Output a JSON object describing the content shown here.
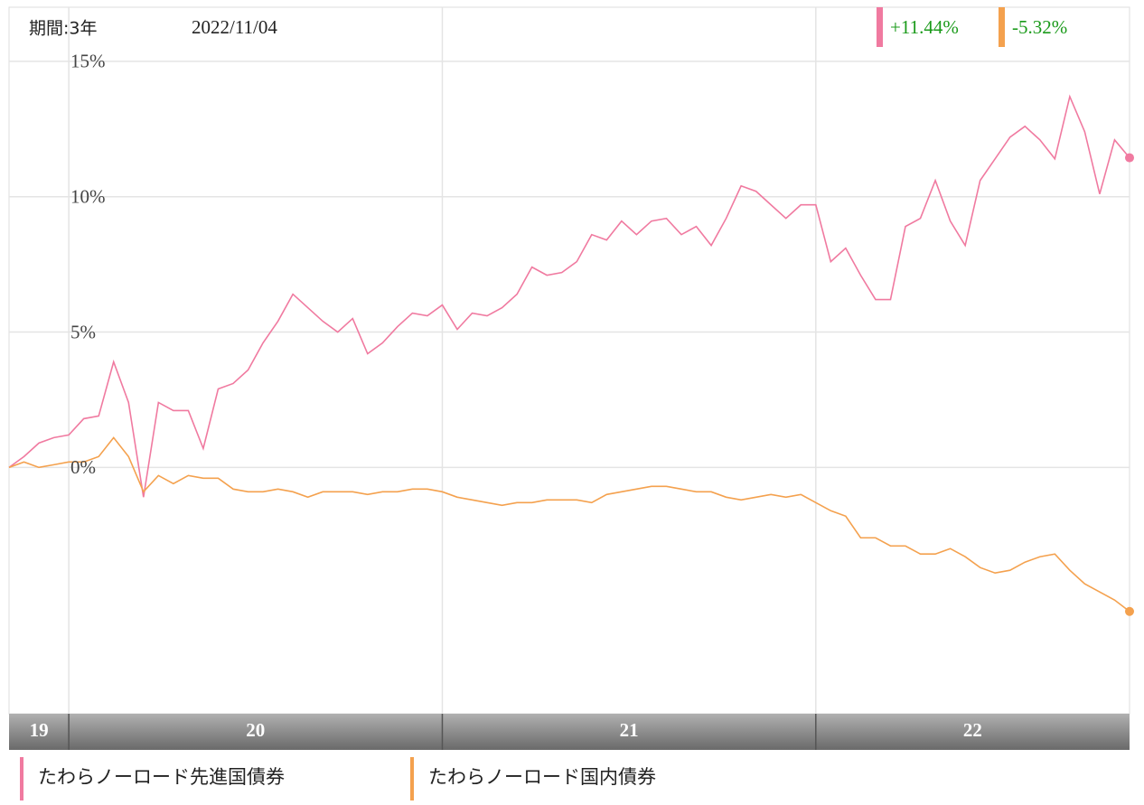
{
  "chart_data": {
    "type": "line",
    "period_label": "期間:3年",
    "date": "2022/11/04",
    "x": [
      2019.84,
      2019.88,
      2019.92,
      2019.96,
      2020.0,
      2020.04,
      2020.08,
      2020.12,
      2020.16,
      2020.2,
      2020.24,
      2020.28,
      2020.32,
      2020.36,
      2020.4,
      2020.44,
      2020.48,
      2020.52,
      2020.56,
      2020.6,
      2020.64,
      2020.68,
      2020.72,
      2020.76,
      2020.8,
      2020.84,
      2020.88,
      2020.92,
      2020.96,
      2021.0,
      2021.04,
      2021.08,
      2021.12,
      2021.16,
      2021.2,
      2021.24,
      2021.28,
      2021.32,
      2021.36,
      2021.4,
      2021.44,
      2021.48,
      2021.52,
      2021.56,
      2021.6,
      2021.64,
      2021.68,
      2021.72,
      2021.76,
      2021.8,
      2021.84,
      2021.88,
      2021.92,
      2021.96,
      2022.0,
      2022.04,
      2022.08,
      2022.12,
      2022.16,
      2022.2,
      2022.24,
      2022.28,
      2022.32,
      2022.36,
      2022.4,
      2022.44,
      2022.48,
      2022.52,
      2022.56,
      2022.6,
      2022.64,
      2022.68,
      2022.72,
      2022.76,
      2022.8,
      2022.84
    ],
    "series": [
      {
        "name": "たわらノーロード先進国債券",
        "color": "#f07aa0",
        "latest_label": "+11.44%",
        "values": [
          0.0,
          0.4,
          0.9,
          1.1,
          1.2,
          1.8,
          1.9,
          3.9,
          2.4,
          -1.1,
          2.4,
          2.1,
          2.1,
          0.7,
          2.9,
          3.1,
          3.6,
          4.6,
          5.4,
          6.4,
          5.9,
          5.4,
          5.0,
          5.5,
          4.2,
          4.6,
          5.2,
          5.7,
          5.6,
          6.0,
          5.1,
          5.7,
          5.6,
          5.9,
          6.4,
          7.4,
          7.1,
          7.2,
          7.6,
          8.6,
          8.4,
          9.1,
          8.6,
          9.1,
          9.2,
          8.6,
          8.9,
          8.2,
          9.2,
          10.4,
          10.2,
          9.7,
          9.2,
          9.7,
          9.7,
          7.6,
          8.1,
          7.1,
          6.2,
          6.2,
          8.9,
          9.2,
          10.6,
          9.1,
          8.2,
          10.6,
          11.4,
          12.2,
          12.6,
          12.1,
          11.4,
          13.7,
          12.4,
          10.1,
          12.1,
          11.44
        ]
      },
      {
        "name": "たわらノーロード国内債券",
        "color": "#f4a14e",
        "latest_label": "-5.32%",
        "values": [
          0.0,
          0.2,
          0.0,
          0.1,
          0.2,
          0.2,
          0.4,
          1.1,
          0.4,
          -0.9,
          -0.3,
          -0.6,
          -0.3,
          -0.4,
          -0.4,
          -0.8,
          -0.9,
          -0.9,
          -0.8,
          -0.9,
          -1.1,
          -0.9,
          -0.9,
          -0.9,
          -1.0,
          -0.9,
          -0.9,
          -0.8,
          -0.8,
          -0.9,
          -1.1,
          -1.2,
          -1.3,
          -1.4,
          -1.3,
          -1.3,
          -1.2,
          -1.2,
          -1.2,
          -1.3,
          -1.0,
          -0.9,
          -0.8,
          -0.7,
          -0.7,
          -0.8,
          -0.9,
          -0.9,
          -1.1,
          -1.2,
          -1.1,
          -1.0,
          -1.1,
          -1.0,
          -1.3,
          -1.6,
          -1.8,
          -2.6,
          -2.6,
          -2.9,
          -2.9,
          -3.2,
          -3.2,
          -3.0,
          -3.3,
          -3.7,
          -3.9,
          -3.8,
          -3.5,
          -3.3,
          -3.2,
          -3.8,
          -4.3,
          -4.6,
          -4.9,
          -5.32
        ]
      }
    ],
    "xlim": [
      2019.84,
      2022.84
    ],
    "ylim": [
      -9.1,
      17
    ],
    "xticks": [
      {
        "value": 2019,
        "label": "19"
      },
      {
        "value": 2020,
        "label": "20"
      },
      {
        "value": 2021,
        "label": "21"
      },
      {
        "value": 2022,
        "label": "22"
      }
    ],
    "yticks": [
      {
        "value": 0,
        "label": "0%"
      },
      {
        "value": 5,
        "label": "5%"
      },
      {
        "value": 10,
        "label": "10%"
      },
      {
        "value": 15,
        "label": "15%"
      }
    ],
    "grid": true
  }
}
